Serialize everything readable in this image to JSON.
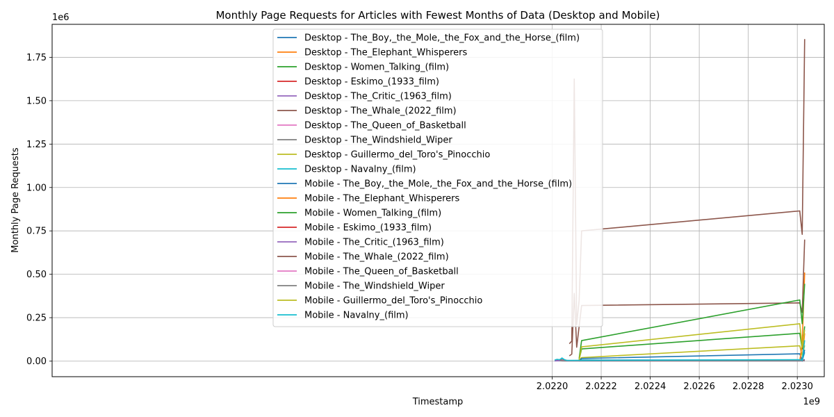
{
  "chart_data": {
    "type": "line",
    "title": "Monthly Page Requests for Articles with Fewest Months of Data (Desktop and Mobile)",
    "xlabel": "Timestamp",
    "ylabel": "Monthly Page Requests",
    "x_multiplier_label": "1e9",
    "y_multiplier_label": "1e6",
    "xlim": [
      2.01996,
      2.02311
    ],
    "ylim": [
      -0.09,
      1.94
    ],
    "x_ticks": [
      2.022,
      2.0222,
      2.0224,
      2.0226,
      2.0228,
      2.023
    ],
    "x_tick_labels": [
      "2.0220",
      "2.0222",
      "2.0224",
      "2.0226",
      "2.0228",
      "2.0230"
    ],
    "y_ticks": [
      0.0,
      0.25,
      0.5,
      0.75,
      1.0,
      1.25,
      1.5,
      1.75
    ],
    "y_tick_labels": [
      "0.00",
      "0.25",
      "0.50",
      "0.75",
      "1.00",
      "1.25",
      "1.50",
      "1.75"
    ],
    "grid": true,
    "legend_position": "upper-center",
    "series": [
      {
        "name": "Desktop - The_Boy,_the_Mole,_the_Fox_and_the_Horse_(film)",
        "color": "#1f77b4",
        "points": [
          [
            2.02211,
            0.0
          ],
          [
            2.02212,
            0.006
          ],
          [
            2.02301,
            0.006
          ],
          [
            2.02302,
            0.0
          ],
          [
            2.02303,
            0.01
          ]
        ]
      },
      {
        "name": "Desktop - The_Elephant_Whisperers",
        "color": "#ff7f0e",
        "points": [
          [
            2.02301,
            0.0
          ],
          [
            2.02302,
            0.02
          ],
          [
            2.02303,
            0.16
          ]
        ]
      },
      {
        "name": "Desktop - Women_Talking_(film)",
        "color": "#2ca02c",
        "points": [
          [
            2.02211,
            0.008
          ],
          [
            2.02212,
            0.07
          ],
          [
            2.02301,
            0.16
          ],
          [
            2.02302,
            0.07
          ],
          [
            2.02303,
            0.2
          ]
        ]
      },
      {
        "name": "Desktop - Eskimo_(1933_film)",
        "color": "#d62728",
        "points": [
          [
            2.02201,
            0.003
          ],
          [
            2.02203,
            0.005
          ],
          [
            2.02205,
            0.003
          ],
          [
            2.02207,
            0.002
          ],
          [
            2.02301,
            0.002
          ],
          [
            2.02303,
            0.003
          ]
        ]
      },
      {
        "name": "Desktop - The_Critic_(1963_film)",
        "color": "#9467bd",
        "points": [
          [
            2.02201,
            0.001
          ],
          [
            2.02203,
            0.002
          ],
          [
            2.02205,
            0.001
          ],
          [
            2.02211,
            0.001
          ],
          [
            2.02301,
            0.001
          ],
          [
            2.02303,
            0.002
          ]
        ]
      },
      {
        "name": "Desktop - The_Whale_(2022_film)",
        "color": "#8c564b",
        "points": [
          [
            2.02207,
            0.03
          ],
          [
            2.02208,
            0.04
          ],
          [
            2.02209,
            0.39
          ],
          [
            2.0221,
            0.08
          ],
          [
            2.02211,
            0.2
          ],
          [
            2.02212,
            0.32
          ],
          [
            2.02301,
            0.335
          ],
          [
            2.02302,
            0.28
          ],
          [
            2.02303,
            0.7
          ]
        ]
      },
      {
        "name": "Desktop - The_Queen_of_Basketball",
        "color": "#e377c2",
        "points": [
          [
            2.02203,
            0.003
          ],
          [
            2.02204,
            0.002
          ],
          [
            2.02212,
            0.002
          ],
          [
            2.02301,
            0.002
          ],
          [
            2.02303,
            0.003
          ]
        ]
      },
      {
        "name": "Desktop - The_Windshield_Wiper",
        "color": "#7f7f7f",
        "points": [
          [
            2.02203,
            0.002
          ],
          [
            2.02204,
            0.001
          ],
          [
            2.02212,
            0.001
          ],
          [
            2.02301,
            0.001
          ],
          [
            2.02303,
            0.002
          ]
        ]
      },
      {
        "name": "Desktop - Guillermo_del_Toro's_Pinocchio",
        "color": "#bcbd22",
        "points": [
          [
            2.02211,
            0.003
          ],
          [
            2.02212,
            0.02
          ],
          [
            2.02301,
            0.088
          ],
          [
            2.02302,
            0.03
          ],
          [
            2.02303,
            0.09
          ]
        ]
      },
      {
        "name": "Desktop - Navalny_(film)",
        "color": "#17becf",
        "points": [
          [
            2.02201,
            0.004
          ],
          [
            2.02202,
            0.008
          ],
          [
            2.02203,
            0.006
          ],
          [
            2.02204,
            0.018
          ],
          [
            2.02205,
            0.008
          ],
          [
            2.02206,
            0.003
          ],
          [
            2.02301,
            0.004
          ],
          [
            2.02302,
            0.003
          ],
          [
            2.02303,
            0.05
          ]
        ]
      },
      {
        "name": "Mobile - The_Boy,_the_Mole,_the_Fox_and_the_Horse_(film)",
        "color": "#1f77b4",
        "points": [
          [
            2.02211,
            0.0
          ],
          [
            2.02212,
            0.015
          ],
          [
            2.02301,
            0.042
          ],
          [
            2.02302,
            0.0
          ],
          [
            2.02303,
            0.065
          ]
        ]
      },
      {
        "name": "Mobile - The_Elephant_Whisperers",
        "color": "#ff7f0e",
        "points": [
          [
            2.02301,
            0.0
          ],
          [
            2.02302,
            0.1
          ],
          [
            2.02303,
            0.51
          ]
        ]
      },
      {
        "name": "Mobile - Women_Talking_(film)",
        "color": "#2ca02c",
        "points": [
          [
            2.02211,
            0.015
          ],
          [
            2.02212,
            0.118
          ],
          [
            2.02301,
            0.352
          ],
          [
            2.02302,
            0.215
          ],
          [
            2.02303,
            0.445
          ]
        ]
      },
      {
        "name": "Mobile - Eskimo_(1933_film)",
        "color": "#d62728",
        "points": [
          [
            2.02201,
            0.004
          ],
          [
            2.02203,
            0.008
          ],
          [
            2.02205,
            0.004
          ],
          [
            2.02207,
            0.003
          ],
          [
            2.02301,
            0.003
          ],
          [
            2.02303,
            0.004
          ]
        ]
      },
      {
        "name": "Mobile - The_Critic_(1963_film)",
        "color": "#9467bd",
        "points": [
          [
            2.02201,
            0.002
          ],
          [
            2.02203,
            0.003
          ],
          [
            2.02205,
            0.002
          ],
          [
            2.02211,
            0.002
          ],
          [
            2.02301,
            0.002
          ],
          [
            2.02303,
            0.003
          ]
        ]
      },
      {
        "name": "Mobile - The_Whale_(2022_film)",
        "color": "#8c564b",
        "points": [
          [
            2.02207,
            0.1
          ],
          [
            2.02208,
            0.115
          ],
          [
            2.02209,
            1.625
          ],
          [
            2.0221,
            0.21
          ],
          [
            2.02211,
            0.35
          ],
          [
            2.02212,
            0.75
          ],
          [
            2.02301,
            0.865
          ],
          [
            2.02302,
            0.73
          ],
          [
            2.02303,
            1.855
          ]
        ]
      },
      {
        "name": "Mobile - The_Queen_of_Basketball",
        "color": "#e377c2",
        "points": [
          [
            2.02203,
            0.004
          ],
          [
            2.02204,
            0.003
          ],
          [
            2.02212,
            0.003
          ],
          [
            2.02301,
            0.003
          ],
          [
            2.02303,
            0.004
          ]
        ]
      },
      {
        "name": "Mobile - The_Windshield_Wiper",
        "color": "#7f7f7f",
        "points": [
          [
            2.02203,
            0.003
          ],
          [
            2.02204,
            0.002
          ],
          [
            2.02212,
            0.002
          ],
          [
            2.02301,
            0.002
          ],
          [
            2.02303,
            0.003
          ]
        ]
      },
      {
        "name": "Mobile - Guillermo_del_Toro's_Pinocchio",
        "color": "#bcbd22",
        "points": [
          [
            2.02211,
            0.005
          ],
          [
            2.02212,
            0.082
          ],
          [
            2.02301,
            0.215
          ],
          [
            2.02302,
            0.08
          ],
          [
            2.02303,
            0.18
          ]
        ]
      },
      {
        "name": "Mobile - Navalny_(film)",
        "color": "#17becf",
        "points": [
          [
            2.02201,
            0.006
          ],
          [
            2.02202,
            0.01
          ],
          [
            2.02203,
            0.008
          ],
          [
            2.02204,
            0.015
          ],
          [
            2.02205,
            0.008
          ],
          [
            2.02206,
            0.004
          ],
          [
            2.02301,
            0.008
          ],
          [
            2.02302,
            0.005
          ],
          [
            2.02303,
            0.12
          ]
        ]
      }
    ]
  }
}
